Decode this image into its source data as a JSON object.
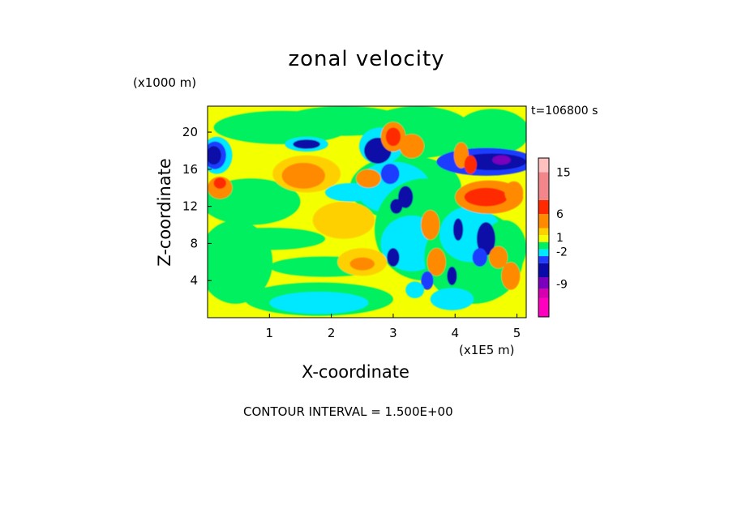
{
  "colors": {
    "pink": "#ff00bf",
    "magenta": "#d600b0",
    "purple": "#7a00bd",
    "navy": "#0a0aa8",
    "blue": "#1f3cff",
    "cyan": "#00e8ff",
    "green": "#00f060",
    "yellow": "#f4ff00",
    "light_orange": "#ffd000",
    "orange": "#ff8a00",
    "red": "#ff2a00",
    "salmon": "#f2868a",
    "light_pink": "#ffc0c0"
  },
  "chart_data": {
    "type": "heatmap",
    "title": "zonal velocity",
    "xlabel": "X-coordinate",
    "ylabel": "Z-coordinate",
    "x_unit_label": "(x1E5 m)",
    "y_unit_label": "(x1000 m)",
    "time_label": "t=106800 s",
    "contour_note": "CONTOUR INTERVAL = 1.500E+00",
    "xlim": [
      0,
      5.15
    ],
    "ylim": [
      0,
      22.8
    ],
    "x_ticks": [
      "1",
      "2",
      "3",
      "4",
      "5"
    ],
    "y_ticks": [
      "4",
      "8",
      "12",
      "16",
      "20"
    ],
    "colorbar_labels": [
      "15",
      "6",
      "1",
      "-2",
      "-9"
    ],
    "colorbar_label_values": [
      15,
      6,
      1,
      -2,
      -9
    ],
    "colorbar_levels": [
      {
        "lo": -16,
        "hi": -12,
        "color": "pink"
      },
      {
        "lo": -12,
        "hi": -10,
        "color": "magenta"
      },
      {
        "lo": -10,
        "hi": -7.5,
        "color": "purple"
      },
      {
        "lo": -7.5,
        "hi": -4.5,
        "color": "navy"
      },
      {
        "lo": -4.5,
        "hi": -3,
        "color": "blue"
      },
      {
        "lo": -3,
        "hi": -1.5,
        "color": "cyan"
      },
      {
        "lo": -1.5,
        "hi": 0,
        "color": "green"
      },
      {
        "lo": 0,
        "hi": 1.5,
        "color": "yellow"
      },
      {
        "lo": 1.5,
        "hi": 3,
        "color": "light_orange"
      },
      {
        "lo": 3,
        "hi": 6,
        "color": "orange"
      },
      {
        "lo": 6,
        "hi": 9,
        "color": "red"
      },
      {
        "lo": 9,
        "hi": 15,
        "color": "salmon"
      },
      {
        "lo": 15,
        "hi": 18,
        "color": "light_pink"
      }
    ],
    "background_level": "yellow",
    "regions": [
      {
        "shape": "ellipse",
        "cx": 0.45,
        "cy": 6.0,
        "rx": 0.6,
        "ry": 4.5,
        "level": "green"
      },
      {
        "shape": "ellipse",
        "cx": 0.7,
        "cy": 12.5,
        "rx": 0.8,
        "ry": 2.5,
        "level": "green"
      },
      {
        "shape": "ellipse",
        "cx": 1.2,
        "cy": 20.5,
        "rx": 1.1,
        "ry": 1.8,
        "level": "green"
      },
      {
        "shape": "ellipse",
        "cx": 2.2,
        "cy": 21.2,
        "rx": 1.0,
        "ry": 1.6,
        "level": "green"
      },
      {
        "shape": "ellipse",
        "cx": 1.0,
        "cy": 8.5,
        "rx": 0.9,
        "ry": 1.2,
        "level": "green"
      },
      {
        "shape": "ellipse",
        "cx": 1.9,
        "cy": 5.5,
        "rx": 0.9,
        "ry": 1.1,
        "level": "green"
      },
      {
        "shape": "ellipse",
        "cx": 1.8,
        "cy": 2.0,
        "rx": 1.2,
        "ry": 1.8,
        "level": "green"
      },
      {
        "shape": "ellipse",
        "cx": 1.8,
        "cy": 1.6,
        "rx": 0.8,
        "ry": 1.2,
        "level": "cyan"
      },
      {
        "shape": "ellipse",
        "cx": 3.4,
        "cy": 20.0,
        "rx": 0.9,
        "ry": 2.8,
        "level": "green"
      },
      {
        "shape": "ellipse",
        "cx": 3.2,
        "cy": 14.0,
        "rx": 0.9,
        "ry": 3.5,
        "level": "green"
      },
      {
        "shape": "ellipse",
        "cx": 3.0,
        "cy": 14.0,
        "rx": 0.6,
        "ry": 2.8,
        "level": "cyan"
      },
      {
        "shape": "ellipse",
        "cx": 3.5,
        "cy": 9.5,
        "rx": 0.8,
        "ry": 5.5,
        "level": "green"
      },
      {
        "shape": "ellipse",
        "cx": 3.3,
        "cy": 8.0,
        "rx": 0.5,
        "ry": 3.0,
        "level": "cyan"
      },
      {
        "shape": "ellipse",
        "cx": 4.3,
        "cy": 6.5,
        "rx": 0.8,
        "ry": 5.0,
        "level": "green"
      },
      {
        "shape": "ellipse",
        "cx": 4.25,
        "cy": 9.0,
        "rx": 0.5,
        "ry": 3.0,
        "level": "cyan"
      },
      {
        "shape": "ellipse",
        "cx": 4.6,
        "cy": 20.0,
        "rx": 0.6,
        "ry": 2.5,
        "level": "green"
      },
      {
        "shape": "ellipse",
        "cx": 4.8,
        "cy": 7.5,
        "rx": 0.35,
        "ry": 3.0,
        "level": "green"
      },
      {
        "shape": "ellipse",
        "cx": 0.15,
        "cy": 17.5,
        "rx": 0.25,
        "ry": 2.0,
        "level": "cyan"
      },
      {
        "shape": "ellipse",
        "cx": 0.12,
        "cy": 17.5,
        "rx": 0.18,
        "ry": 1.5,
        "level": "blue"
      },
      {
        "shape": "ellipse",
        "cx": 0.1,
        "cy": 17.5,
        "rx": 0.12,
        "ry": 1.0,
        "level": "navy"
      },
      {
        "shape": "ellipse",
        "cx": 0.2,
        "cy": 14.0,
        "rx": 0.2,
        "ry": 1.2,
        "level": "orange"
      },
      {
        "shape": "ellipse",
        "cx": 0.2,
        "cy": 14.5,
        "rx": 0.1,
        "ry": 0.6,
        "level": "red"
      },
      {
        "shape": "ellipse",
        "cx": 1.6,
        "cy": 18.7,
        "rx": 0.35,
        "ry": 0.8,
        "level": "cyan"
      },
      {
        "shape": "ellipse",
        "cx": 1.6,
        "cy": 18.7,
        "rx": 0.22,
        "ry": 0.5,
        "level": "navy"
      },
      {
        "shape": "ellipse",
        "cx": 1.6,
        "cy": 15.5,
        "rx": 0.55,
        "ry": 2.0,
        "level": "light_orange"
      },
      {
        "shape": "ellipse",
        "cx": 1.55,
        "cy": 15.3,
        "rx": 0.35,
        "ry": 1.4,
        "level": "orange"
      },
      {
        "shape": "ellipse",
        "cx": 2.2,
        "cy": 10.5,
        "rx": 0.5,
        "ry": 2.0,
        "level": "light_orange"
      },
      {
        "shape": "ellipse",
        "cx": 2.5,
        "cy": 6.0,
        "rx": 0.4,
        "ry": 1.5,
        "level": "light_orange"
      },
      {
        "shape": "ellipse",
        "cx": 2.5,
        "cy": 5.8,
        "rx": 0.2,
        "ry": 0.7,
        "level": "orange"
      },
      {
        "shape": "ellipse",
        "cx": 2.3,
        "cy": 13.5,
        "rx": 0.4,
        "ry": 1.0,
        "level": "cyan"
      },
      {
        "shape": "ellipse",
        "cx": 2.8,
        "cy": 18.5,
        "rx": 0.35,
        "ry": 2.0,
        "level": "cyan"
      },
      {
        "shape": "ellipse",
        "cx": 2.75,
        "cy": 18.0,
        "rx": 0.22,
        "ry": 1.4,
        "level": "navy"
      },
      {
        "shape": "ellipse",
        "cx": 3.0,
        "cy": 19.5,
        "rx": 0.2,
        "ry": 1.6,
        "level": "orange"
      },
      {
        "shape": "ellipse",
        "cx": 3.0,
        "cy": 19.5,
        "rx": 0.12,
        "ry": 1.0,
        "level": "red"
      },
      {
        "shape": "ellipse",
        "cx": 3.3,
        "cy": 18.5,
        "rx": 0.2,
        "ry": 1.3,
        "level": "orange"
      },
      {
        "shape": "ellipse",
        "cx": 2.6,
        "cy": 15.0,
        "rx": 0.2,
        "ry": 1.0,
        "level": "orange"
      },
      {
        "shape": "ellipse",
        "cx": 2.95,
        "cy": 15.5,
        "rx": 0.15,
        "ry": 1.1,
        "level": "blue"
      },
      {
        "shape": "ellipse",
        "cx": 3.2,
        "cy": 13.0,
        "rx": 0.12,
        "ry": 1.2,
        "level": "navy"
      },
      {
        "shape": "ellipse",
        "cx": 3.05,
        "cy": 12.0,
        "rx": 0.1,
        "ry": 0.8,
        "level": "navy"
      },
      {
        "shape": "ellipse",
        "cx": 3.0,
        "cy": 6.5,
        "rx": 0.1,
        "ry": 1.0,
        "level": "navy"
      },
      {
        "shape": "ellipse",
        "cx": 3.6,
        "cy": 10.0,
        "rx": 0.15,
        "ry": 1.6,
        "level": "orange"
      },
      {
        "shape": "ellipse",
        "cx": 3.7,
        "cy": 6.0,
        "rx": 0.15,
        "ry": 1.5,
        "level": "orange"
      },
      {
        "shape": "ellipse",
        "cx": 3.55,
        "cy": 4.0,
        "rx": 0.1,
        "ry": 1.0,
        "level": "blue"
      },
      {
        "shape": "ellipse",
        "cx": 4.5,
        "cy": 16.8,
        "rx": 0.8,
        "ry": 1.5,
        "level": "blue"
      },
      {
        "shape": "ellipse",
        "cx": 4.6,
        "cy": 16.8,
        "rx": 0.55,
        "ry": 0.9,
        "level": "navy"
      },
      {
        "shape": "ellipse",
        "cx": 4.75,
        "cy": 17.0,
        "rx": 0.15,
        "ry": 0.5,
        "level": "purple"
      },
      {
        "shape": "ellipse",
        "cx": 4.55,
        "cy": 13.0,
        "rx": 0.55,
        "ry": 1.8,
        "level": "orange"
      },
      {
        "shape": "ellipse",
        "cx": 4.5,
        "cy": 13.0,
        "rx": 0.35,
        "ry": 1.0,
        "level": "red"
      },
      {
        "shape": "ellipse",
        "cx": 4.95,
        "cy": 13.5,
        "rx": 0.15,
        "ry": 1.2,
        "level": "orange"
      },
      {
        "shape": "ellipse",
        "cx": 4.1,
        "cy": 17.5,
        "rx": 0.12,
        "ry": 1.4,
        "level": "orange"
      },
      {
        "shape": "ellipse",
        "cx": 4.25,
        "cy": 16.5,
        "rx": 0.1,
        "ry": 1.0,
        "level": "red"
      },
      {
        "shape": "ellipse",
        "cx": 4.5,
        "cy": 8.5,
        "rx": 0.15,
        "ry": 1.8,
        "level": "navy"
      },
      {
        "shape": "ellipse",
        "cx": 4.4,
        "cy": 6.5,
        "rx": 0.12,
        "ry": 1.0,
        "level": "blue"
      },
      {
        "shape": "ellipse",
        "cx": 4.7,
        "cy": 6.5,
        "rx": 0.15,
        "ry": 1.2,
        "level": "orange"
      },
      {
        "shape": "ellipse",
        "cx": 4.9,
        "cy": 4.5,
        "rx": 0.15,
        "ry": 1.5,
        "level": "orange"
      },
      {
        "shape": "ellipse",
        "cx": 3.95,
        "cy": 4.5,
        "rx": 0.08,
        "ry": 1.0,
        "level": "navy"
      },
      {
        "shape": "ellipse",
        "cx": 4.05,
        "cy": 9.5,
        "rx": 0.08,
        "ry": 1.2,
        "level": "navy"
      },
      {
        "shape": "ellipse",
        "cx": 3.35,
        "cy": 3.0,
        "rx": 0.15,
        "ry": 0.9,
        "level": "cyan"
      },
      {
        "shape": "ellipse",
        "cx": 3.95,
        "cy": 2.0,
        "rx": 0.35,
        "ry": 1.2,
        "level": "cyan"
      }
    ]
  }
}
